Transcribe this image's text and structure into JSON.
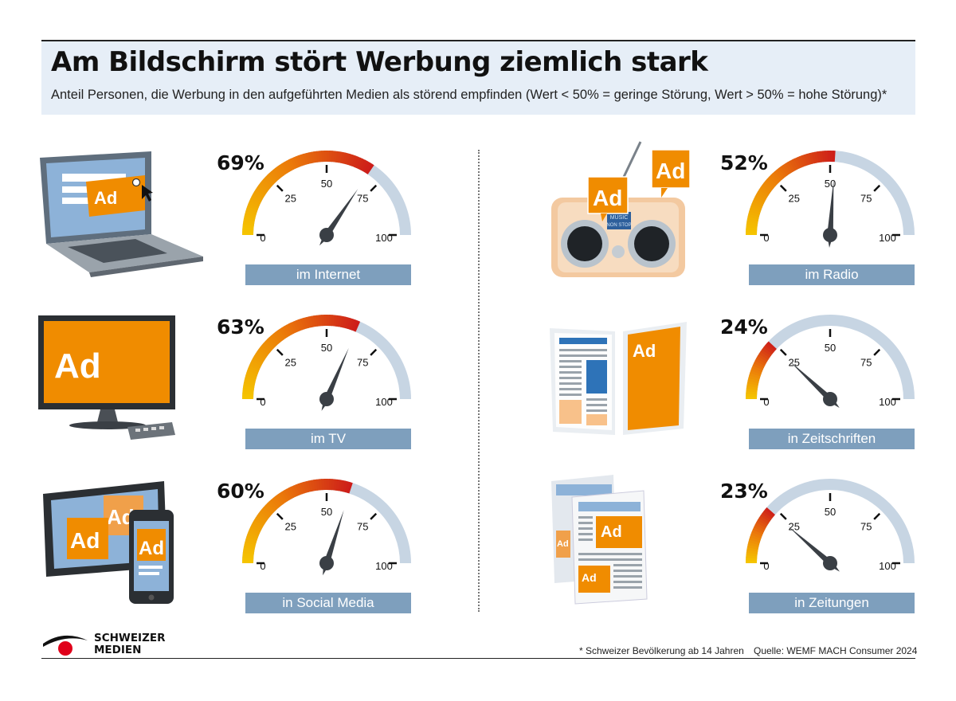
{
  "header": {
    "title": "Am Bildschirm stört Werbung ziemlich stark",
    "subtitle": "Anteil Personen, die Werbung in den aufgeführten Medien als störend empfinden (Wert < 50% = geringe Störung, Wert > 50% = hohe Störung)*"
  },
  "chart_data": {
    "type": "gauge",
    "range": [
      0,
      100
    ],
    "scale_labels": [
      "0",
      "25",
      "50",
      "75",
      "100"
    ],
    "colors": {
      "low": "#f5c400",
      "mid": "#eb7a0a",
      "high": "#cc1a1a",
      "track": "#c7d5e3",
      "needle": "#3a3f45",
      "label_bg": "#7e9fbd"
    },
    "items": [
      {
        "label": "im Internet",
        "value": 69,
        "value_text": "69%",
        "icon": "laptop-icon"
      },
      {
        "label": "im TV",
        "value": 63,
        "value_text": "63%",
        "icon": "tv-icon"
      },
      {
        "label": "in Social Media",
        "value": 60,
        "value_text": "60%",
        "icon": "tablet-phone-icon"
      },
      {
        "label": "im Radio",
        "value": 52,
        "value_text": "52%",
        "icon": "radio-icon"
      },
      {
        "label": "in Zeitschriften",
        "value": 24,
        "value_text": "24%",
        "icon": "magazine-icon"
      },
      {
        "label": "in Zeitungen",
        "value": 23,
        "value_text": "23%",
        "icon": "newspaper-icon"
      }
    ]
  },
  "icons": {
    "ad_text": "Ad",
    "radio_screen_line1": "MUSIC",
    "radio_screen_line2": "NON STOP"
  },
  "footer": {
    "logo_line1": "SCHWEIZER",
    "logo_line2": "MEDIEN",
    "footnote": "* Schweizer Bevölkerung ab 14 Jahren",
    "source": "Quelle: WEMF MACH Consumer 2024"
  }
}
